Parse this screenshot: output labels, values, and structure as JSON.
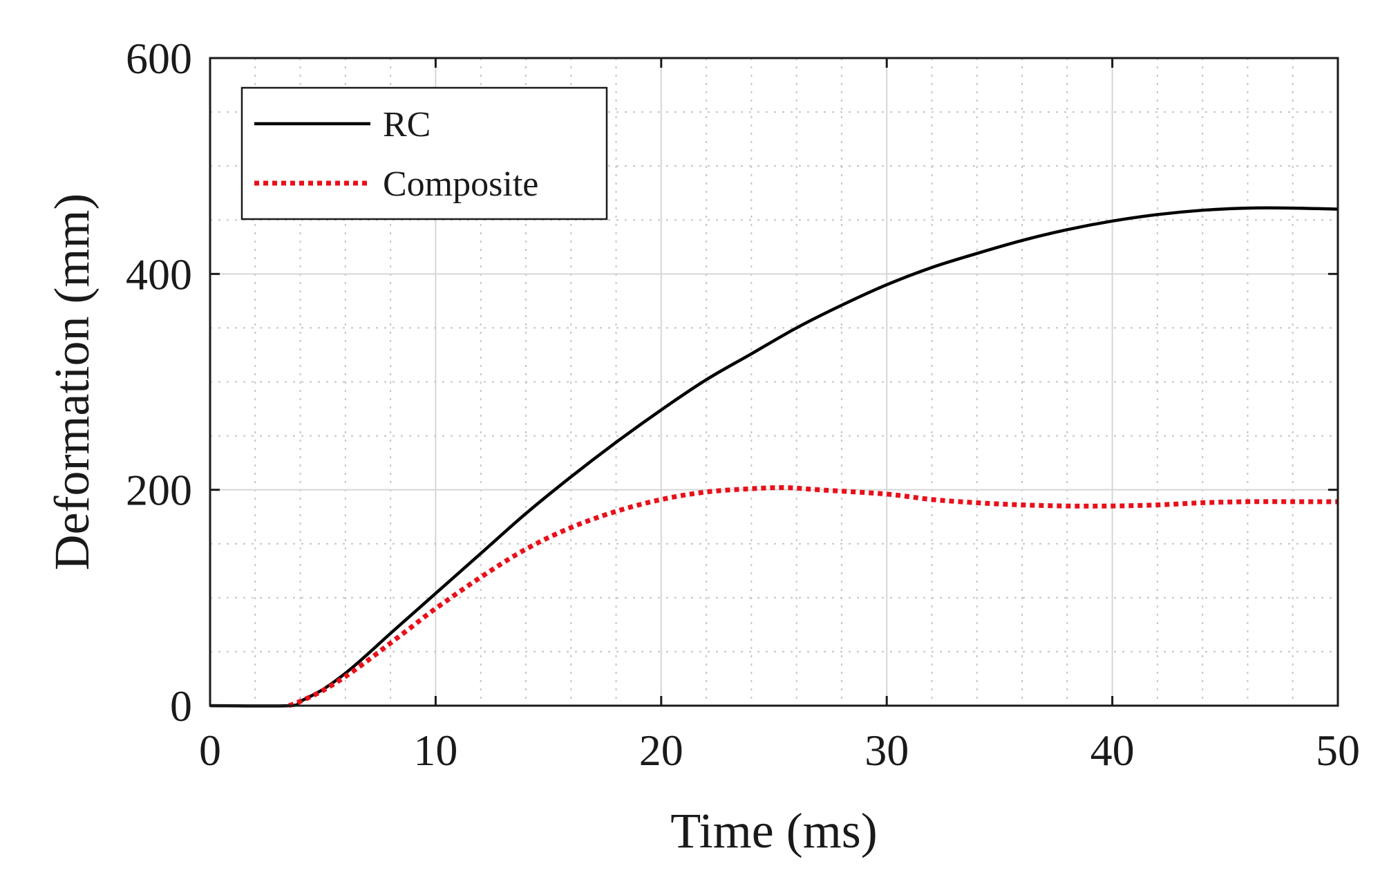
{
  "chart_data": {
    "type": "line",
    "title": "",
    "xlabel": "Time (ms)",
    "ylabel": "Deformation (mm)",
    "xlim": [
      0,
      50
    ],
    "ylim": [
      0,
      600
    ],
    "xticks": [
      0,
      10,
      20,
      30,
      40,
      50
    ],
    "yticks": [
      0,
      200,
      400,
      600
    ],
    "xtick_labels": [
      "0",
      "10",
      "20",
      "30",
      "40",
      "50"
    ],
    "ytick_labels": [
      "0",
      "200",
      "400",
      "600"
    ],
    "x_minor_step": 2,
    "y_minor_step": 50,
    "grid": true,
    "legend_position": "top-left",
    "series": [
      {
        "name": "RC",
        "color": "#000000",
        "style": "solid",
        "x": [
          0,
          3.5,
          4,
          5,
          6,
          7,
          8,
          10,
          12,
          14,
          16,
          18,
          20,
          22,
          24,
          26,
          28,
          30,
          32,
          34,
          36,
          38,
          40,
          42,
          44,
          46,
          48,
          50
        ],
        "y": [
          0,
          0,
          4,
          15,
          30,
          48,
          67,
          104,
          141,
          178,
          212,
          244,
          274,
          302,
          326,
          350,
          371,
          390,
          406,
          419,
          431,
          441,
          449,
          455,
          459,
          461,
          461,
          460
        ]
      },
      {
        "name": "Composite",
        "color": "#e8101a",
        "style": "dotted",
        "x": [
          3.5,
          4,
          5,
          6,
          7,
          8,
          9,
          10,
          12,
          14,
          16,
          18,
          20,
          22,
          24,
          25.5,
          27,
          30,
          32,
          34,
          36,
          38,
          40,
          42,
          44,
          46,
          48,
          50
        ],
        "y": [
          0,
          4,
          14,
          27,
          42,
          58,
          74,
          90,
          119,
          145,
          165,
          180,
          191,
          198,
          201,
          202,
          200,
          196,
          191,
          188,
          186,
          185,
          185,
          186,
          188,
          189,
          189,
          189
        ]
      }
    ]
  }
}
